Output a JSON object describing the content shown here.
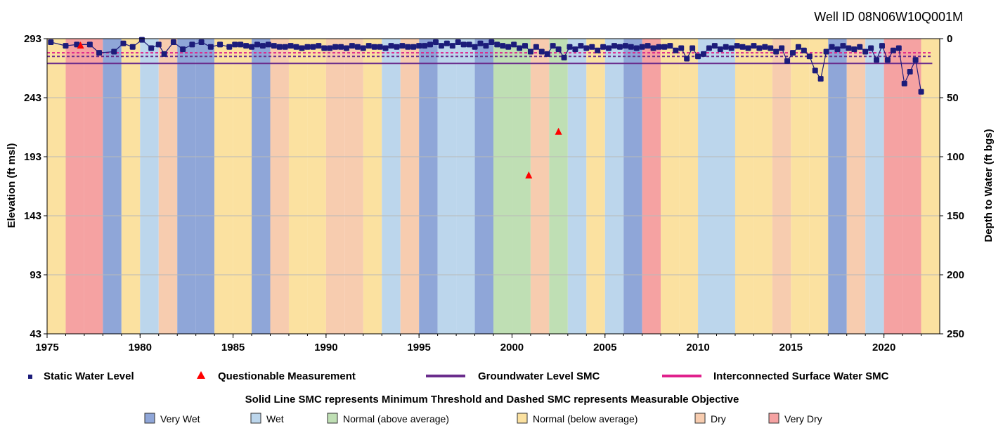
{
  "chart_data": {
    "type": "scatter",
    "title": "Well ID 08N06W10Q001M",
    "xlabel": "",
    "ylabel_left": "Elevation (ft msl)",
    "ylabel_right": "Depth to Water (ft bgs)",
    "xlim": [
      1975,
      2023
    ],
    "ylim_left": [
      43,
      293
    ],
    "ylim_right": [
      250,
      0
    ],
    "x_ticks": [
      "1975",
      "1980",
      "1985",
      "1990",
      "1995",
      "2000",
      "2005",
      "2010",
      "2015",
      "2020"
    ],
    "y_left_ticks": [
      "293",
      "243",
      "193",
      "143",
      "93",
      "43"
    ],
    "y_right_ticks": [
      "0",
      "50",
      "100",
      "150",
      "200",
      "250"
    ],
    "grid": "horizontal",
    "land_surface_elevation": 293,
    "water_year_types": [
      {
        "year": 1975,
        "type": "normal_below"
      },
      {
        "year": 1976,
        "type": "very_dry"
      },
      {
        "year": 1977,
        "type": "very_dry"
      },
      {
        "year": 1978,
        "type": "very_wet"
      },
      {
        "year": 1979,
        "type": "normal_below"
      },
      {
        "year": 1980,
        "type": "wet"
      },
      {
        "year": 1981,
        "type": "dry"
      },
      {
        "year": 1982,
        "type": "very_wet"
      },
      {
        "year": 1983,
        "type": "very_wet"
      },
      {
        "year": 1984,
        "type": "normal_below"
      },
      {
        "year": 1985,
        "type": "normal_below"
      },
      {
        "year": 1986,
        "type": "very_wet"
      },
      {
        "year": 1987,
        "type": "dry"
      },
      {
        "year": 1988,
        "type": "normal_below"
      },
      {
        "year": 1989,
        "type": "normal_below"
      },
      {
        "year": 1990,
        "type": "dry"
      },
      {
        "year": 1991,
        "type": "dry"
      },
      {
        "year": 1992,
        "type": "normal_below"
      },
      {
        "year": 1993,
        "type": "wet"
      },
      {
        "year": 1994,
        "type": "dry"
      },
      {
        "year": 1995,
        "type": "very_wet"
      },
      {
        "year": 1996,
        "type": "wet"
      },
      {
        "year": 1997,
        "type": "wet"
      },
      {
        "year": 1998,
        "type": "very_wet"
      },
      {
        "year": 1999,
        "type": "normal_above"
      },
      {
        "year": 2000,
        "type": "normal_above"
      },
      {
        "year": 2001,
        "type": "dry"
      },
      {
        "year": 2002,
        "type": "normal_above"
      },
      {
        "year": 2003,
        "type": "wet"
      },
      {
        "year": 2004,
        "type": "normal_below"
      },
      {
        "year": 2005,
        "type": "wet"
      },
      {
        "year": 2006,
        "type": "very_wet"
      },
      {
        "year": 2007,
        "type": "very_dry"
      },
      {
        "year": 2008,
        "type": "normal_below"
      },
      {
        "year": 2009,
        "type": "normal_below"
      },
      {
        "year": 2010,
        "type": "wet"
      },
      {
        "year": 2011,
        "type": "wet"
      },
      {
        "year": 2012,
        "type": "normal_below"
      },
      {
        "year": 2013,
        "type": "normal_below"
      },
      {
        "year": 2014,
        "type": "dry"
      },
      {
        "year": 2015,
        "type": "normal_below"
      },
      {
        "year": 2016,
        "type": "normal_below"
      },
      {
        "year": 2017,
        "type": "very_wet"
      },
      {
        "year": 2018,
        "type": "dry"
      },
      {
        "year": 2019,
        "type": "wet"
      },
      {
        "year": 2020,
        "type": "very_dry"
      },
      {
        "year": 2021,
        "type": "very_dry"
      },
      {
        "year": 2022,
        "type": "normal_below"
      }
    ],
    "series": [
      {
        "name": "Static Water Level",
        "marker": "square",
        "color": "#1c1c7a",
        "x": [
          1975.2,
          1976.0,
          1976.6,
          1977.3,
          1977.8,
          1978.6,
          1979.1,
          1979.6,
          1980.1,
          1980.6,
          1981.0,
          1981.3,
          1981.8,
          1982.3,
          1982.8,
          1983.3,
          1983.8,
          1984.3,
          1984.8,
          1985.1,
          1985.4,
          1985.7,
          1986.0,
          1986.3,
          1986.6,
          1986.9,
          1987.2,
          1987.5,
          1987.8,
          1988.1,
          1988.4,
          1988.7,
          1989.0,
          1989.3,
          1989.6,
          1989.9,
          1990.2,
          1990.5,
          1990.8,
          1991.1,
          1991.4,
          1991.7,
          1992.0,
          1992.3,
          1992.6,
          1992.9,
          1993.2,
          1993.5,
          1993.8,
          1994.1,
          1994.4,
          1994.7,
          1995.0,
          1995.3,
          1995.6,
          1995.9,
          1996.2,
          1996.5,
          1996.8,
          1997.1,
          1997.4,
          1997.7,
          1998.0,
          1998.3,
          1998.6,
          1998.9,
          1999.2,
          1999.5,
          1999.8,
          2000.1,
          2000.4,
          2000.7,
          2001.0,
          2001.3,
          2001.6,
          2001.9,
          2002.2,
          2002.5,
          2002.8,
          2003.1,
          2003.4,
          2003.7,
          2004.0,
          2004.3,
          2004.6,
          2004.9,
          2005.2,
          2005.5,
          2005.8,
          2006.1,
          2006.4,
          2006.7,
          2007.0,
          2007.3,
          2007.6,
          2007.9,
          2008.2,
          2008.5,
          2008.8,
          2009.1,
          2009.4,
          2009.7,
          2010.0,
          2010.3,
          2010.6,
          2010.9,
          2011.2,
          2011.5,
          2011.8,
          2012.1,
          2012.4,
          2012.7,
          2013.0,
          2013.3,
          2013.6,
          2013.9,
          2014.2,
          2014.5,
          2014.8,
          2015.1,
          2015.4,
          2015.7,
          2016.0,
          2016.3,
          2016.6,
          2016.9,
          2017.2,
          2017.5,
          2017.8,
          2018.1,
          2018.4,
          2018.7,
          2019.0,
          2019.3,
          2019.6,
          2019.9,
          2020.2,
          2020.5,
          2020.8,
          2021.1,
          2021.4,
          2021.7,
          2022.0
        ],
        "y": [
          290,
          287,
          288,
          288,
          281,
          282,
          289,
          286,
          292,
          285,
          288,
          280,
          290,
          284,
          288,
          290,
          286,
          288,
          286,
          288,
          288,
          287,
          286,
          288,
          287,
          288,
          287,
          286,
          286,
          287,
          286,
          285,
          286,
          286,
          287,
          285,
          285,
          286,
          286,
          285,
          287,
          286,
          285,
          287,
          286,
          286,
          285,
          287,
          286,
          287,
          286,
          286,
          287,
          287,
          288,
          290,
          287,
          289,
          287,
          290,
          288,
          288,
          286,
          289,
          287,
          290,
          288,
          287,
          286,
          288,
          285,
          287,
          282,
          286,
          282,
          280,
          287,
          284,
          277,
          286,
          284,
          287,
          285,
          286,
          283,
          286,
          285,
          287,
          286,
          287,
          286,
          285,
          286,
          287,
          285,
          286,
          286,
          287,
          283,
          285,
          276,
          285,
          278,
          280,
          285,
          287,
          284,
          286,
          285,
          287,
          286,
          285,
          287,
          285,
          286,
          285,
          282,
          285,
          274,
          281,
          286,
          283,
          278,
          266,
          259,
          282,
          286,
          284,
          287,
          285,
          284,
          286,
          282,
          285,
          275,
          287,
          275,
          283,
          285,
          255,
          265,
          275,
          248
        ]
      },
      {
        "name": "Questionable Measurement",
        "marker": "triangle",
        "color": "#ff0000",
        "x": [
          1976.8,
          2000.9,
          2002.5
        ],
        "y": [
          287,
          177,
          214
        ]
      }
    ],
    "thresholds": [
      {
        "name": "Groundwater Level SMC",
        "kind": "Minimum Threshold",
        "style": "solid",
        "color": "#6a2c8c",
        "value": 272
      },
      {
        "name": "Groundwater Level SMC",
        "kind": "Measurable Objective",
        "style": "dashed",
        "color": "#6a2c8c",
        "value": 278
      },
      {
        "name": "Interconnected Surface Water SMC",
        "kind": "Measurable Objective",
        "style": "dashed",
        "color": "#e0208c",
        "value": 281
      }
    ],
    "legend": {
      "items": [
        {
          "label": "Static Water Level",
          "kind": "square",
          "color": "#1c1c7a"
        },
        {
          "label": "Questionable Measurement",
          "kind": "triangle",
          "color": "#ff0000"
        },
        {
          "label": "Groundwater Level SMC",
          "kind": "line",
          "color": "#6a2c8c"
        },
        {
          "label": "Interconnected Surface Water SMC",
          "kind": "line",
          "color": "#e0208c"
        }
      ],
      "note": "Solid Line SMC represents Minimum Threshold and Dashed SMC represents Measurable Objective",
      "year_types": [
        {
          "key": "very_wet",
          "label": "Very Wet",
          "color": "#8fa6d8"
        },
        {
          "key": "wet",
          "label": "Wet",
          "color": "#bcd6ec"
        },
        {
          "key": "normal_above",
          "label": "Normal (above average)",
          "color": "#bfdfb4"
        },
        {
          "key": "normal_below",
          "label": "Normal (below average)",
          "color": "#fbe1a0"
        },
        {
          "key": "dry",
          "label": "Dry",
          "color": "#f7ccaf"
        },
        {
          "key": "very_dry",
          "label": "Very Dry",
          "color": "#f5a2a2"
        }
      ]
    }
  }
}
